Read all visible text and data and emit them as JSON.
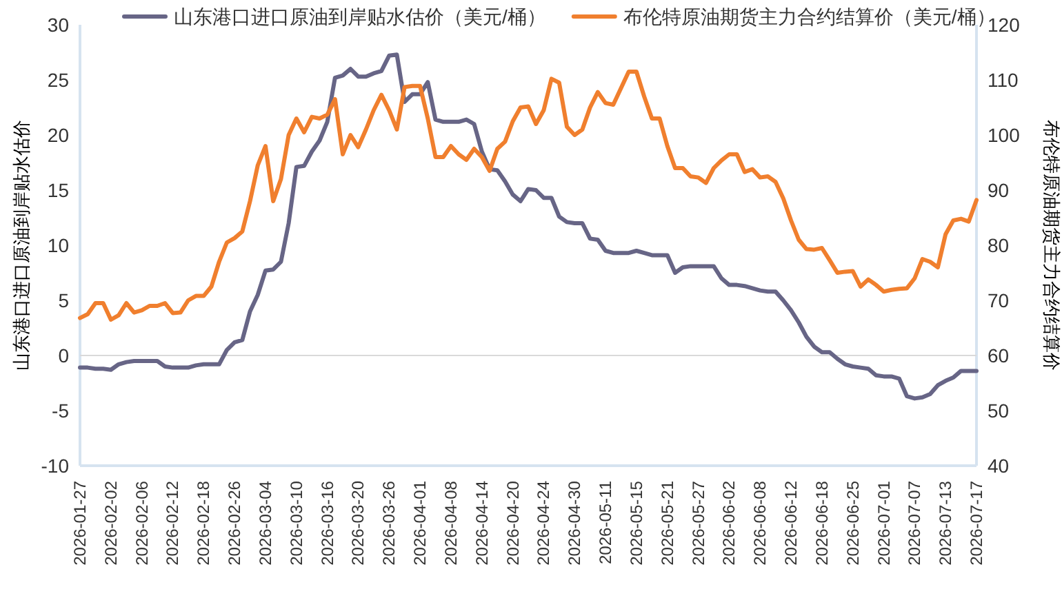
{
  "chart_data": {
    "type": "line",
    "categories": [
      "2026-01-27",
      null,
      null,
      null,
      "2026-02-02",
      null,
      null,
      null,
      "2026-02-06",
      null,
      null,
      null,
      "2026-02-12",
      null,
      null,
      null,
      "2026-02-18",
      null,
      null,
      null,
      "2026-02-26",
      null,
      null,
      null,
      "2026-03-04",
      null,
      null,
      null,
      "2026-03-10",
      null,
      null,
      null,
      "2026-03-16",
      null,
      null,
      null,
      "2026-03-20",
      null,
      null,
      null,
      "2026-03-26",
      null,
      null,
      null,
      "2026-04-01",
      null,
      null,
      null,
      "2026-04-08",
      null,
      null,
      null,
      "2026-04-14",
      null,
      null,
      null,
      "2026-04-20",
      null,
      null,
      null,
      "2026-04-24",
      null,
      null,
      null,
      "2026-04-30",
      null,
      null,
      null,
      "2026-05-11",
      null,
      null,
      null,
      "2026-05-15",
      null,
      null,
      null,
      "2026-05-21",
      null,
      null,
      null,
      "2026-05-27",
      null,
      null,
      null,
      "2026-06-02",
      null,
      null,
      null,
      "2026-06-08",
      null,
      null,
      null,
      "2026-06-12",
      null,
      null,
      null,
      "2026-06-18",
      null,
      null,
      null,
      "2026-06-25",
      null,
      null,
      null,
      "2026-07-01",
      null,
      null,
      null,
      "2026-07-07",
      null,
      null,
      null,
      "2026-07-13",
      null,
      null,
      null,
      "2026-07-17"
    ],
    "series": [
      {
        "name": "山东港口进口原油到岸贴水估价（美元/桶）",
        "color": "#676586",
        "axis": "y",
        "values": [
          -1.1,
          -1.1,
          -1.2,
          -1.2,
          -1.3,
          -0.8,
          -0.6,
          -0.5,
          -0.5,
          -0.5,
          -0.5,
          -1.0,
          -1.1,
          -1.1,
          -1.1,
          -0.9,
          -0.8,
          -0.8,
          -0.8,
          0.5,
          1.2,
          1.4,
          4.0,
          5.5,
          7.7,
          7.8,
          8.5,
          12.0,
          17.1,
          17.2,
          18.5,
          19.5,
          21.2,
          25.2,
          25.4,
          26.0,
          25.3,
          25.3,
          25.6,
          25.8,
          27.2,
          27.3,
          23.0,
          23.7,
          23.7,
          24.8,
          21.4,
          21.2,
          21.2,
          21.2,
          21.4,
          21.0,
          18.5,
          16.9,
          16.8,
          15.8,
          14.6,
          14.0,
          15.1,
          15.0,
          14.3,
          14.3,
          12.6,
          12.1,
          12.0,
          12.0,
          10.6,
          10.5,
          9.5,
          9.3,
          9.3,
          9.3,
          9.5,
          9.3,
          9.1,
          9.1,
          9.1,
          7.5,
          8.0,
          8.1,
          8.1,
          8.1,
          8.1,
          7.0,
          6.4,
          6.4,
          6.3,
          6.1,
          5.9,
          5.8,
          5.8,
          5.0,
          4.1,
          3.0,
          1.7,
          0.8,
          0.3,
          0.3,
          -0.3,
          -0.8,
          -1.0,
          -1.1,
          -1.2,
          -1.8,
          -1.9,
          -1.9,
          -2.1,
          -3.7,
          -3.9,
          -3.8,
          -3.5,
          -2.7,
          -2.3,
          -2.0,
          -1.4,
          -1.4,
          -1.4
        ]
      },
      {
        "name": "布伦特原油期货主力合约结算价（美元/桶）",
        "color": "#f07f2e",
        "axis": "y2",
        "values": [
          66.8,
          67.5,
          69.5,
          69.5,
          66.5,
          67.3,
          69.5,
          67.8,
          68.2,
          69.0,
          69.0,
          69.5,
          67.7,
          67.8,
          70.0,
          70.8,
          70.8,
          72.5,
          77.0,
          80.5,
          81.3,
          82.5,
          88.0,
          94.5,
          98.0,
          88.0,
          92.0,
          100.0,
          103.0,
          100.5,
          103.3,
          103.0,
          103.7,
          106.5,
          96.5,
          100.0,
          97.8,
          101.0,
          104.5,
          107.3,
          104.5,
          101.0,
          108.7,
          108.9,
          108.9,
          103.0,
          96.0,
          96.0,
          98.0,
          96.5,
          95.5,
          97.5,
          96.0,
          93.5,
          97.5,
          98.8,
          102.5,
          105.0,
          105.2,
          102.0,
          104.5,
          110.2,
          109.5,
          101.5,
          100.0,
          101.0,
          105.0,
          107.8,
          105.8,
          105.5,
          108.5,
          111.5,
          111.5,
          107.0,
          103.0,
          103.0,
          98.0,
          94.0,
          94.0,
          92.5,
          92.3,
          91.3,
          94.0,
          95.4,
          96.5,
          96.5,
          93.3,
          93.8,
          92.3,
          92.5,
          91.5,
          88.5,
          84.5,
          81.0,
          79.3,
          79.2,
          79.5,
          77.3,
          75.0,
          75.2,
          75.3,
          72.5,
          73.8,
          72.8,
          71.6,
          71.9,
          72.1,
          72.2,
          74.0,
          77.5,
          77.0,
          76.0,
          82.0,
          84.5,
          84.8,
          84.3,
          88.2
        ]
      }
    ],
    "ylabel": "山东港口进口原油到岸贴水估价",
    "y2label": "布伦特原油期货主力合约结算价",
    "ylim": [
      -10,
      30
    ],
    "yticks": [
      -10,
      -5,
      0,
      5,
      10,
      15,
      20,
      25,
      30
    ],
    "y2lim": [
      40,
      120
    ],
    "y2ticks": [
      40,
      50,
      60,
      70,
      80,
      90,
      100,
      110,
      120
    ],
    "legend": "top"
  }
}
